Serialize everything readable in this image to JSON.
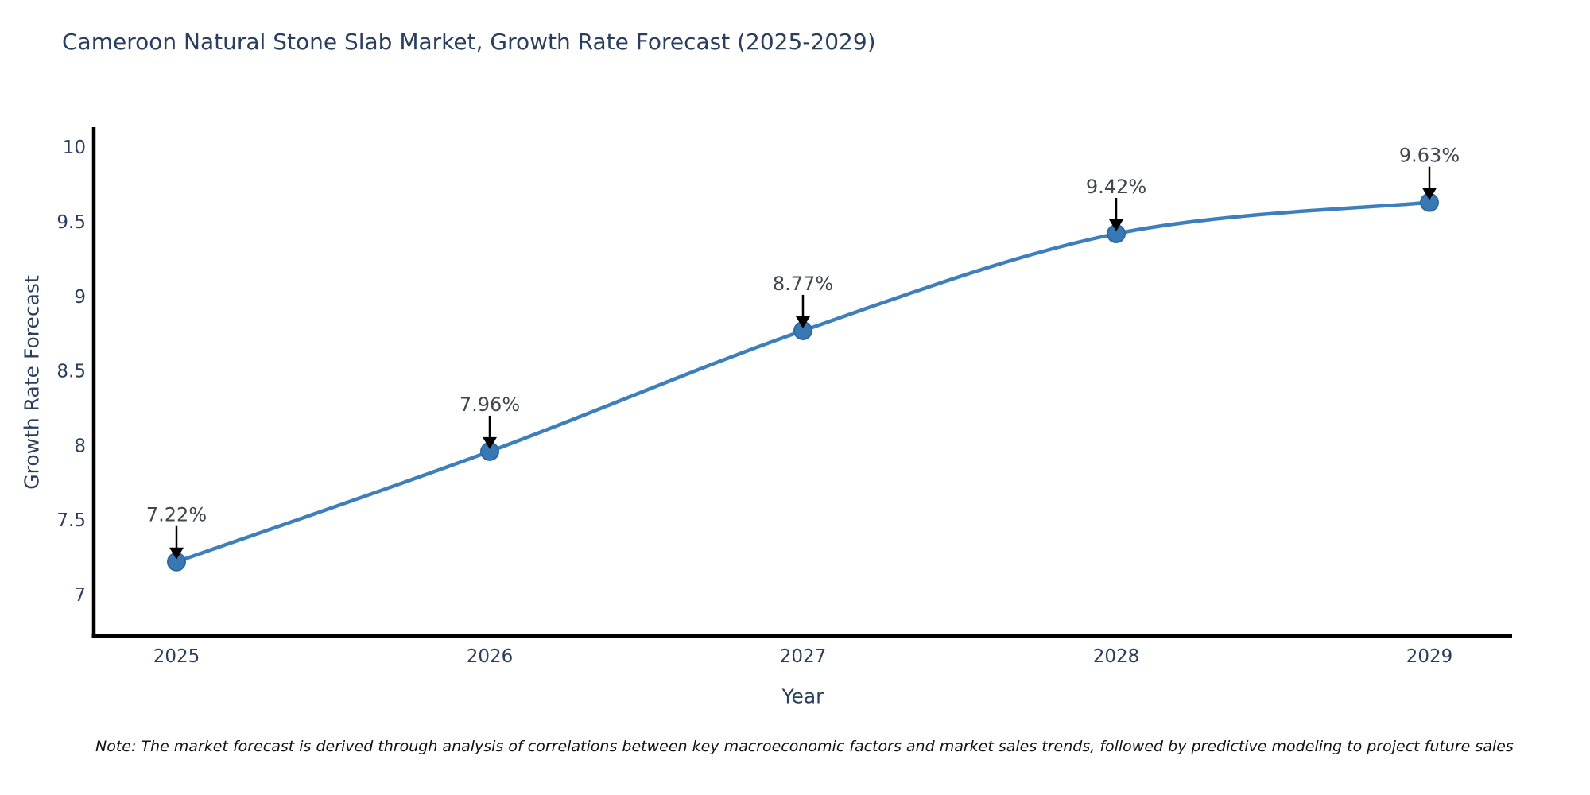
{
  "title": "Cameroon Natural Stone Slab Market, Growth Rate Forecast (2025-2029)",
  "note": "Note: The market forecast is derived through analysis of correlations between key macroeconomic factors and market sales trends, followed by predictive modeling to project future sales",
  "chart_data": {
    "type": "line",
    "title": "Cameroon Natural Stone Slab Market, Growth Rate Forecast (2025-2029)",
    "xlabel": "Year",
    "ylabel": "Growth Rate Forecast",
    "x": [
      2025,
      2026,
      2027,
      2028,
      2029
    ],
    "series": [
      {
        "name": "Growth Rate Forecast",
        "values": [
          7.22,
          7.96,
          8.77,
          9.42,
          9.63
        ]
      }
    ],
    "point_labels": [
      "7.22%",
      "7.96%",
      "8.77%",
      "9.42%",
      "9.63%"
    ],
    "yticks": [
      7,
      7.5,
      8,
      8.5,
      9,
      9.5,
      10
    ],
    "xticks": [
      2025,
      2026,
      2027,
      2028,
      2029
    ],
    "ylim": [
      6.66,
      10.35
    ],
    "grid": false,
    "legend": false,
    "line_shape": "spline",
    "marker": "circle",
    "annotation_arrows": true,
    "colors": {
      "line": "#3d7ebd",
      "marker": "#3878b4",
      "marker_edge": "#2d6aa3",
      "axis": "#000000",
      "tick_text": "#2a3f5f",
      "annotation_text": "#42464e",
      "arrow": "#000000",
      "background": "#ffffff"
    }
  }
}
